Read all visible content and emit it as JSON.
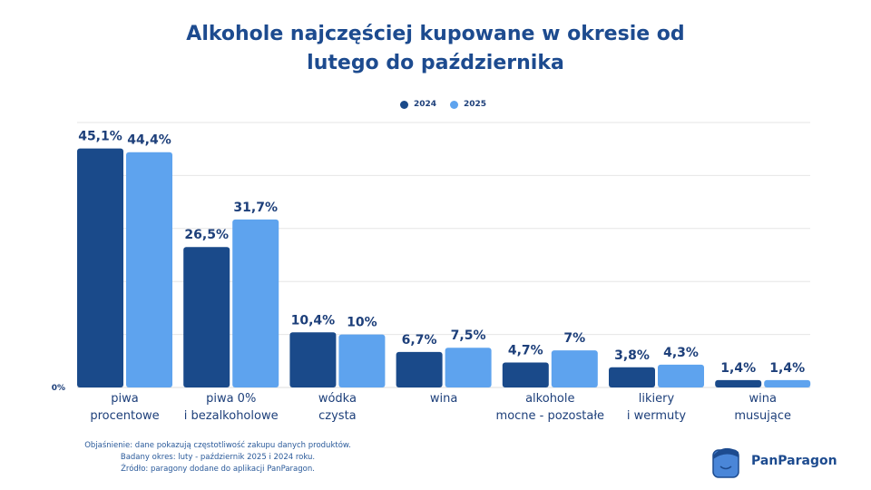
{
  "chart_data": {
    "type": "bar",
    "title": [
      "Alkohole najczęściej kupowane w okresie od",
      "lutego do października"
    ],
    "categories": [
      [
        "piwa",
        "procentowe"
      ],
      [
        "piwa 0%",
        "i bezalkoholowe"
      ],
      [
        "wódka",
        "czysta"
      ],
      [
        "wina",
        ""
      ],
      [
        "alkohole",
        "mocne - pozostałe"
      ],
      [
        "likiery",
        "i wermuty"
      ],
      [
        "wina",
        "musujące"
      ]
    ],
    "series": [
      {
        "name": "2024",
        "color": "#1a4a8a",
        "values": [
          45.1,
          26.5,
          10.4,
          6.7,
          4.7,
          3.8,
          1.4
        ],
        "labels": [
          "45,1%",
          "26,5%",
          "10,4%",
          "6,7%",
          "4,7%",
          "3,8%",
          "1,4%"
        ]
      },
      {
        "name": "2025",
        "color": "#5ea3ee",
        "values": [
          44.4,
          31.7,
          10,
          7.5,
          7,
          4.3,
          1.4
        ],
        "labels": [
          "44,4%",
          "31,7%",
          "10%",
          "7,5%",
          "7%",
          "4,3%",
          "1,4%"
        ]
      }
    ],
    "ylim": [
      0,
      50
    ],
    "y_tick_label": "0%",
    "grid": true,
    "legend_position": "top-center"
  },
  "footer": [
    "Objaśnienie: dane pokazują częstotliwość zakupu danych produktów.",
    "Badany okres: luty - październik 2025 i 2024 roku.",
    "Źródło: paragony dodane do aplikacji PanParagon."
  ],
  "logo": {
    "name": "PanParagon"
  }
}
